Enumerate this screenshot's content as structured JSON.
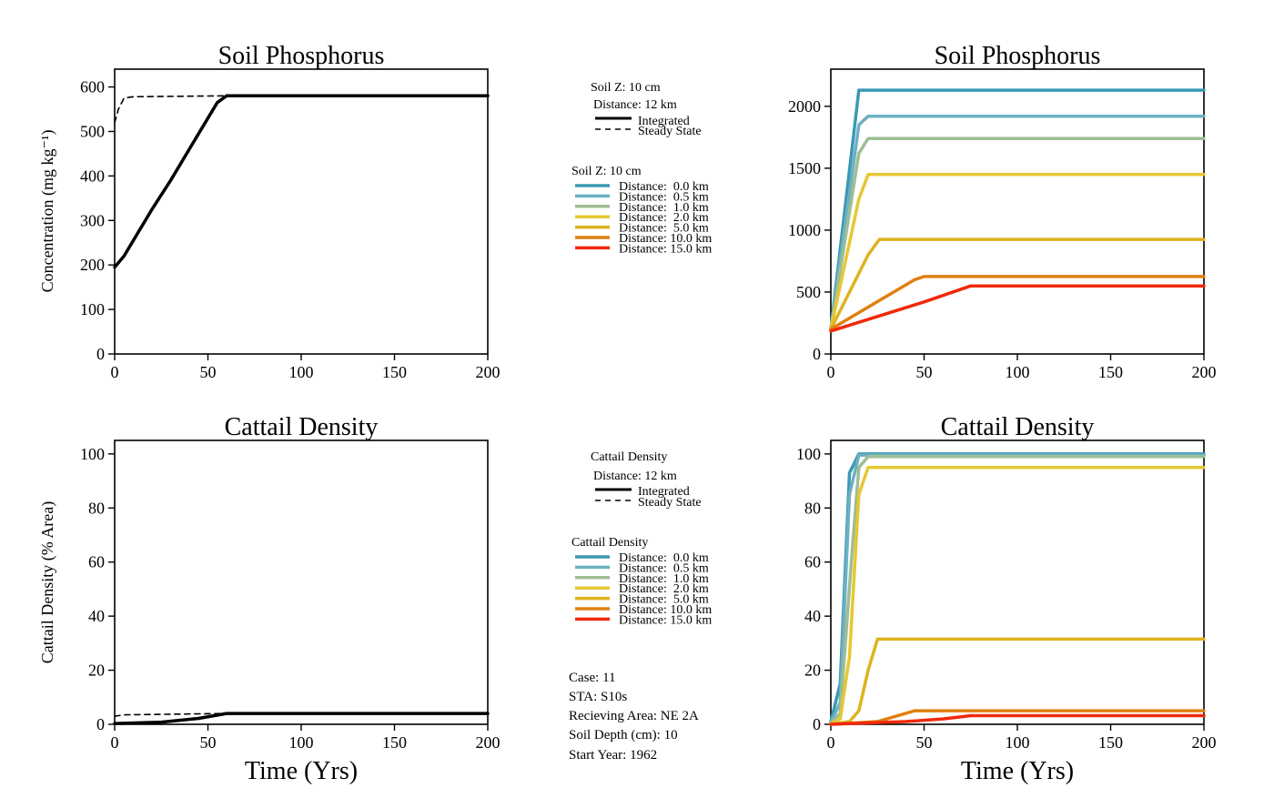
{
  "colors": {
    "d0": "#3a99b3",
    "d05": "#6db0c4",
    "d1": "#9dbe93",
    "d2": "#e6c733",
    "d5": "#ddb31f",
    "d10": "#e0800f",
    "d15": "#f0290c",
    "black": "#000000"
  },
  "chart_data": [
    {
      "id": "soilp_int",
      "type": "line",
      "title": "Soil Phosphorus",
      "xlabel": "",
      "ylabel": "Concentration (mg kg⁻¹)",
      "xlim": [
        0,
        200
      ],
      "ylim": [
        0,
        640
      ],
      "xticks": [
        0,
        50,
        100,
        150,
        200
      ],
      "yticks": [
        0,
        100,
        200,
        300,
        400,
        500,
        600
      ],
      "series": [
        {
          "name": "Integrated",
          "style": "solid",
          "color": "#000000",
          "x": [
            0,
            5,
            10,
            20,
            30,
            40,
            50,
            55,
            60,
            200
          ],
          "y": [
            195,
            220,
            255,
            325,
            390,
            460,
            530,
            565,
            580,
            580
          ]
        },
        {
          "name": "Steady State",
          "style": "dashed",
          "color": "#000000",
          "x": [
            0,
            2,
            5,
            10,
            60,
            200
          ],
          "y": [
            520,
            550,
            575,
            578,
            580,
            580
          ]
        }
      ]
    },
    {
      "id": "soilp_dist",
      "type": "line",
      "title": "Soil Phosphorus",
      "xlabel": "",
      "ylabel": "",
      "xlim": [
        0,
        200
      ],
      "ylim": [
        0,
        2300
      ],
      "xticks": [
        0,
        50,
        100,
        150,
        200
      ],
      "yticks": [
        0,
        500,
        1000,
        1500,
        2000
      ],
      "series": [
        {
          "name": "Distance:  0.0 km",
          "color": "#3a99b3",
          "x": [
            0,
            15,
            200
          ],
          "y": [
            200,
            2130,
            2130
          ]
        },
        {
          "name": "Distance:  0.5 km",
          "color": "#6db0c4",
          "x": [
            0,
            15,
            20,
            200
          ],
          "y": [
            200,
            1850,
            1920,
            1920
          ]
        },
        {
          "name": "Distance:  1.0 km",
          "color": "#9dbe93",
          "x": [
            0,
            15,
            20,
            200
          ],
          "y": [
            200,
            1620,
            1740,
            1740
          ]
        },
        {
          "name": "Distance:  2.0 km",
          "color": "#e6c733",
          "x": [
            0,
            15,
            20,
            200
          ],
          "y": [
            200,
            1250,
            1450,
            1450
          ]
        },
        {
          "name": "Distance:  5.0 km",
          "color": "#ddb31f",
          "x": [
            0,
            20,
            26,
            200
          ],
          "y": [
            200,
            800,
            925,
            925
          ]
        },
        {
          "name": "Distance: 10.0 km",
          "color": "#e0800f",
          "x": [
            0,
            45,
            50,
            200
          ],
          "y": [
            200,
            600,
            625,
            625
          ]
        },
        {
          "name": "Distance: 15.0 km",
          "color": "#f0290c",
          "x": [
            0,
            50,
            75,
            200
          ],
          "y": [
            185,
            420,
            550,
            550
          ]
        }
      ]
    },
    {
      "id": "cattail_int",
      "type": "line",
      "title": "Cattail Density",
      "xlabel": "Time (Yrs)",
      "ylabel": "Cattail Density (% Area)",
      "xlim": [
        0,
        200
      ],
      "ylim": [
        0,
        105
      ],
      "xticks": [
        0,
        50,
        100,
        150,
        200
      ],
      "yticks": [
        0,
        20,
        40,
        60,
        80,
        100
      ],
      "series": [
        {
          "name": "Integrated",
          "style": "solid",
          "color": "#000000",
          "x": [
            0,
            25,
            45,
            60,
            200
          ],
          "y": [
            0.3,
            0.8,
            2.2,
            4,
            4
          ]
        },
        {
          "name": "Steady State",
          "style": "dashed",
          "color": "#000000",
          "x": [
            0,
            5,
            60,
            200
          ],
          "y": [
            3,
            3.5,
            4,
            4
          ]
        }
      ]
    },
    {
      "id": "cattail_dist",
      "type": "line",
      "title": "Cattail Density",
      "xlabel": "Time (Yrs)",
      "ylabel": "",
      "xlim": [
        0,
        200
      ],
      "ylim": [
        0,
        105
      ],
      "xticks": [
        0,
        50,
        100,
        150,
        200
      ],
      "yticks": [
        0,
        20,
        40,
        60,
        80,
        100
      ],
      "series": [
        {
          "name": "Distance:  0.0 km",
          "color": "#3a99b3",
          "x": [
            0,
            5,
            10,
            15,
            200
          ],
          "y": [
            1,
            15,
            93,
            100,
            100
          ]
        },
        {
          "name": "Distance:  0.5 km",
          "color": "#6db0c4",
          "x": [
            0,
            5,
            10,
            15,
            200
          ],
          "y": [
            0.5,
            8,
            85,
            99.5,
            99.5
          ]
        },
        {
          "name": "Distance:  1.0 km",
          "color": "#9dbe93",
          "x": [
            0,
            5,
            11,
            15,
            20,
            200
          ],
          "y": [
            0.3,
            4,
            60,
            95,
            99,
            99
          ]
        },
        {
          "name": "Distance:  2.0 km",
          "color": "#e6c733",
          "x": [
            0,
            5,
            10,
            15,
            20,
            200
          ],
          "y": [
            0.2,
            2,
            25,
            85,
            95,
            95
          ]
        },
        {
          "name": "Distance:  5.0 km",
          "color": "#ddb31f",
          "x": [
            0,
            10,
            15,
            20,
            25,
            200
          ],
          "y": [
            0,
            1,
            5,
            20,
            31.5,
            31.5
          ]
        },
        {
          "name": "Distance: 10.0 km",
          "color": "#e0800f",
          "x": [
            0,
            25,
            35,
            45,
            200
          ],
          "y": [
            0,
            1,
            3,
            5,
            5
          ]
        },
        {
          "name": "Distance: 15.0 km",
          "color": "#f0290c",
          "x": [
            0,
            40,
            60,
            75,
            200
          ],
          "y": [
            0,
            1,
            2,
            3.2,
            3.2
          ]
        }
      ]
    }
  ],
  "legends": {
    "top_single": {
      "header": "Soil Z: 10 cm",
      "sub": "Distance: 12 km",
      "items": [
        "Integrated",
        "Steady State"
      ]
    },
    "top_multi": {
      "header": "Soil Z: 10 cm",
      "items": [
        "Distance:  0.0 km",
        "Distance:  0.5 km",
        "Distance:  1.0 km",
        "Distance:  2.0 km",
        "Distance:  5.0 km",
        "Distance: 10.0 km",
        "Distance: 15.0 km"
      ]
    },
    "bottom_single": {
      "header": "Cattail Density",
      "sub": "Distance: 12 km",
      "items": [
        "Integrated",
        "Steady State"
      ]
    },
    "bottom_multi": {
      "header": "Cattail Density",
      "items": [
        "Distance:  0.0 km",
        "Distance:  0.5 km",
        "Distance:  1.0 km",
        "Distance:  2.0 km",
        "Distance:  5.0 km",
        "Distance: 10.0 km",
        "Distance: 15.0 km"
      ]
    }
  },
  "info": [
    "Case: 11",
    "STA: S10s",
    "Recieving Area: NE 2A",
    "Soil Depth (cm): 10",
    "Start Year: 1962"
  ]
}
